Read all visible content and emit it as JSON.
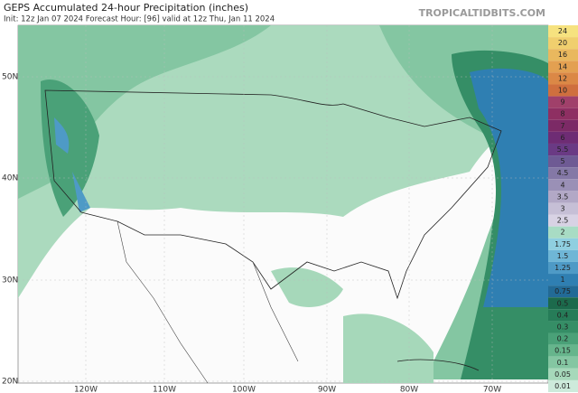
{
  "header": {
    "title": "GEPS Accumulated 24-hour Precipitation (inches)",
    "subtitle": "Init: 12z Jan 07 2024    Forecast Hour: [96]   valid at 12z Thu, Jan 11 2024",
    "site": "TROPICALTIDBITS.COM"
  },
  "map": {
    "lat_labels": [
      "50N",
      "40N",
      "30N",
      "20N"
    ],
    "lon_labels": [
      "120W",
      "110W",
      "100W",
      "90W",
      "80W",
      "70W"
    ]
  },
  "colorbar": [
    {
      "label": "24",
      "color": "#f6e27f"
    },
    {
      "label": "20",
      "color": "#f0cf6e"
    },
    {
      "label": "16",
      "color": "#e9b85e"
    },
    {
      "label": "14",
      "color": "#e3a051"
    },
    {
      "label": "12",
      "color": "#db8846"
    },
    {
      "label": "10",
      "color": "#cf6f3e"
    },
    {
      "label": "9",
      "color": "#a0406a"
    },
    {
      "label": "8",
      "color": "#8e2f62"
    },
    {
      "label": "7",
      "color": "#7c2a66"
    },
    {
      "label": "6",
      "color": "#6e2c74"
    },
    {
      "label": "5.5",
      "color": "#6a3a84"
    },
    {
      "label": "5",
      "color": "#6e5a94"
    },
    {
      "label": "4.5",
      "color": "#8478a6"
    },
    {
      "label": "4",
      "color": "#9a90b6"
    },
    {
      "label": "3.5",
      "color": "#b2a8c6"
    },
    {
      "label": "3",
      "color": "#c6bfd6"
    },
    {
      "label": "2.5",
      "color": "#d8d2e4"
    },
    {
      "label": "2",
      "color": "#a8dcc4"
    },
    {
      "label": "1.75",
      "color": "#8fcfe0"
    },
    {
      "label": "1.5",
      "color": "#6fb6d6"
    },
    {
      "label": "1.25",
      "color": "#4e9ac6"
    },
    {
      "label": "1",
      "color": "#2f7fb2"
    },
    {
      "label": "0.75",
      "color": "#226a96"
    },
    {
      "label": "0.5",
      "color": "#1c6a4c"
    },
    {
      "label": "0.4",
      "color": "#267c58"
    },
    {
      "label": "0.3",
      "color": "#358e66"
    },
    {
      "label": "0.2",
      "color": "#4aa178"
    },
    {
      "label": "0.15",
      "color": "#66b58c"
    },
    {
      "label": "0.1",
      "color": "#84c6a2"
    },
    {
      "label": "0.05",
      "color": "#a6d8ba"
    },
    {
      "label": "0.01",
      "color": "#cdeadb"
    }
  ]
}
